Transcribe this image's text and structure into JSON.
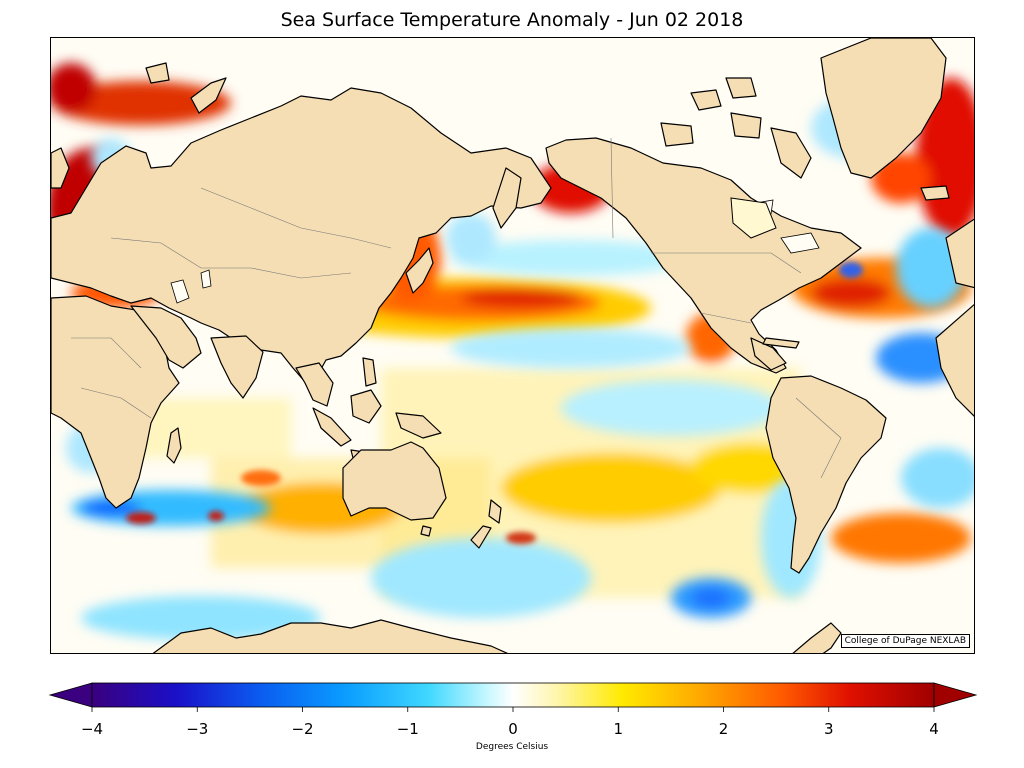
{
  "title": "Sea Surface Temperature Anomaly - Jun 02 2018",
  "credit": "College of DuPage NEXLAB",
  "colorbar": {
    "label": "Degrees Celsius",
    "min": -4,
    "max": 4,
    "ticks": [
      "−4",
      "−3",
      "−2",
      "−1",
      "0",
      "1",
      "2",
      "3",
      "4"
    ],
    "extend": "both",
    "colors": [
      "#3a007f",
      "#0b43d9",
      "#0a8cff",
      "#33ccff",
      "#b8f4ff",
      "#ffffff",
      "#fff6b0",
      "#ffea00",
      "#ff9900",
      "#f02000",
      "#a00000"
    ]
  },
  "map": {
    "land_color": "#f5deb3",
    "ocean_base_color": "#fffdf4"
  }
}
